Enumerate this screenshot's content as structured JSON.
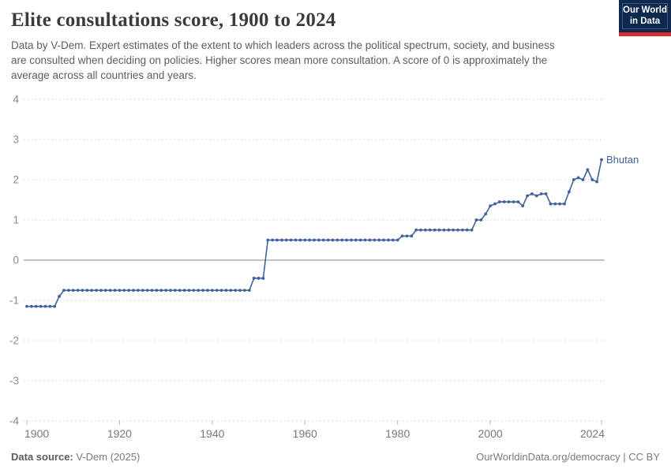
{
  "header": {
    "title": "Elite consultations score, 1900 to 2024",
    "subtitle": "Data by V-Dem. Expert estimates of the extent to which leaders across the political spectrum, society, and business are consulted when deciding on policies. Higher scores mean more consultation. A score of 0 is approximately the average across all countries and years."
  },
  "logo": {
    "line1": "Our World",
    "line2": "in Data",
    "bg_color": "#0d2a4e",
    "stripe_color": "#dc2e2e"
  },
  "footer": {
    "source_label": "Data source:",
    "source_value": " V-Dem (2025)",
    "link": "OurWorldinData.org/democracy",
    "sep": " | ",
    "license": "CC BY"
  },
  "chart_data": {
    "type": "line",
    "title": "Elite consultations score, 1900 to 2024",
    "entity": "Bhutan",
    "xlabel": "",
    "ylabel": "",
    "x_range": [
      1900,
      2024
    ],
    "ylim": [
      -4,
      4
    ],
    "yticks": [
      4,
      3,
      2,
      1,
      0,
      -1,
      -2,
      -3,
      -4
    ],
    "xticks": [
      1900,
      1920,
      1940,
      1960,
      1980,
      2000,
      2024
    ],
    "grid": "dashed horizontal gridlines, solid zero line",
    "legend_position": "end-of-line label",
    "line_color": "#41619e",
    "axis_label_color": "#8b8b8b",
    "points": [
      [
        1900,
        -1.15
      ],
      [
        1901,
        -1.15
      ],
      [
        1902,
        -1.15
      ],
      [
        1903,
        -1.15
      ],
      [
        1904,
        -1.15
      ],
      [
        1905,
        -1.15
      ],
      [
        1906,
        -1.15
      ],
      [
        1907,
        -0.9
      ],
      [
        1908,
        -0.75
      ],
      [
        1909,
        -0.75
      ],
      [
        1910,
        -0.75
      ],
      [
        1911,
        -0.75
      ],
      [
        1912,
        -0.75
      ],
      [
        1913,
        -0.75
      ],
      [
        1914,
        -0.75
      ],
      [
        1915,
        -0.75
      ],
      [
        1916,
        -0.75
      ],
      [
        1917,
        -0.75
      ],
      [
        1918,
        -0.75
      ],
      [
        1919,
        -0.75
      ],
      [
        1920,
        -0.75
      ],
      [
        1921,
        -0.75
      ],
      [
        1922,
        -0.75
      ],
      [
        1923,
        -0.75
      ],
      [
        1924,
        -0.75
      ],
      [
        1925,
        -0.75
      ],
      [
        1926,
        -0.75
      ],
      [
        1927,
        -0.75
      ],
      [
        1928,
        -0.75
      ],
      [
        1929,
        -0.75
      ],
      [
        1930,
        -0.75
      ],
      [
        1931,
        -0.75
      ],
      [
        1932,
        -0.75
      ],
      [
        1933,
        -0.75
      ],
      [
        1934,
        -0.75
      ],
      [
        1935,
        -0.75
      ],
      [
        1936,
        -0.75
      ],
      [
        1937,
        -0.75
      ],
      [
        1938,
        -0.75
      ],
      [
        1939,
        -0.75
      ],
      [
        1940,
        -0.75
      ],
      [
        1941,
        -0.75
      ],
      [
        1942,
        -0.75
      ],
      [
        1943,
        -0.75
      ],
      [
        1944,
        -0.75
      ],
      [
        1945,
        -0.75
      ],
      [
        1946,
        -0.75
      ],
      [
        1947,
        -0.75
      ],
      [
        1948,
        -0.75
      ],
      [
        1949,
        -0.45
      ],
      [
        1950,
        -0.45
      ],
      [
        1951,
        -0.45
      ],
      [
        1952,
        0.5
      ],
      [
        1953,
        0.5
      ],
      [
        1954,
        0.5
      ],
      [
        1955,
        0.5
      ],
      [
        1956,
        0.5
      ],
      [
        1957,
        0.5
      ],
      [
        1958,
        0.5
      ],
      [
        1959,
        0.5
      ],
      [
        1960,
        0.5
      ],
      [
        1961,
        0.5
      ],
      [
        1962,
        0.5
      ],
      [
        1963,
        0.5
      ],
      [
        1964,
        0.5
      ],
      [
        1965,
        0.5
      ],
      [
        1966,
        0.5
      ],
      [
        1967,
        0.5
      ],
      [
        1968,
        0.5
      ],
      [
        1969,
        0.5
      ],
      [
        1970,
        0.5
      ],
      [
        1971,
        0.5
      ],
      [
        1972,
        0.5
      ],
      [
        1973,
        0.5
      ],
      [
        1974,
        0.5
      ],
      [
        1975,
        0.5
      ],
      [
        1976,
        0.5
      ],
      [
        1977,
        0.5
      ],
      [
        1978,
        0.5
      ],
      [
        1979,
        0.5
      ],
      [
        1980,
        0.5
      ],
      [
        1981,
        0.6
      ],
      [
        1982,
        0.6
      ],
      [
        1983,
        0.6
      ],
      [
        1984,
        0.75
      ],
      [
        1985,
        0.75
      ],
      [
        1986,
        0.75
      ],
      [
        1987,
        0.75
      ],
      [
        1988,
        0.75
      ],
      [
        1989,
        0.75
      ],
      [
        1990,
        0.75
      ],
      [
        1991,
        0.75
      ],
      [
        1992,
        0.75
      ],
      [
        1993,
        0.75
      ],
      [
        1994,
        0.75
      ],
      [
        1995,
        0.75
      ],
      [
        1996,
        0.75
      ],
      [
        1997,
        1
      ],
      [
        1998,
        1
      ],
      [
        1999,
        1.15
      ],
      [
        2000,
        1.35
      ],
      [
        2001,
        1.4
      ],
      [
        2002,
        1.45
      ],
      [
        2003,
        1.45
      ],
      [
        2004,
        1.45
      ],
      [
        2005,
        1.45
      ],
      [
        2006,
        1.45
      ],
      [
        2007,
        1.35
      ],
      [
        2008,
        1.6
      ],
      [
        2009,
        1.65
      ],
      [
        2010,
        1.6
      ],
      [
        2011,
        1.65
      ],
      [
        2012,
        1.65
      ],
      [
        2013,
        1.4
      ],
      [
        2014,
        1.4
      ],
      [
        2015,
        1.4
      ],
      [
        2016,
        1.4
      ],
      [
        2017,
        1.7
      ],
      [
        2018,
        2
      ],
      [
        2019,
        2.05
      ],
      [
        2020,
        2
      ],
      [
        2021,
        2.25
      ],
      [
        2022,
        2
      ],
      [
        2023,
        1.95
      ],
      [
        2024,
        2.5
      ]
    ]
  }
}
